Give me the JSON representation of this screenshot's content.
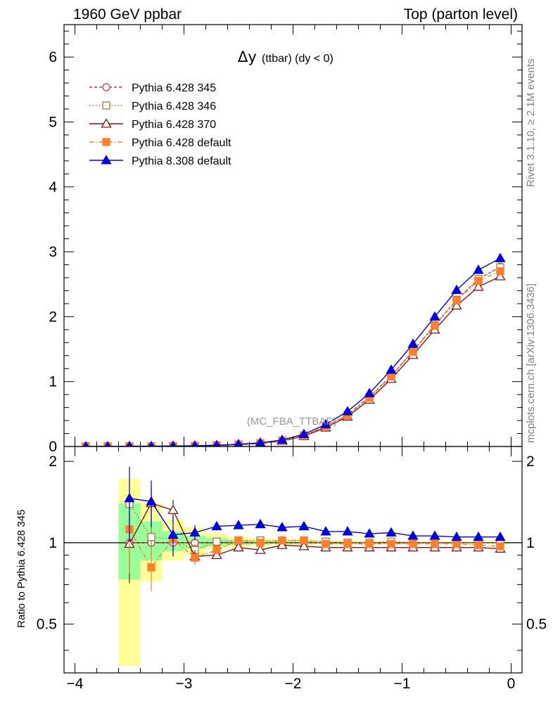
{
  "header": {
    "left": "1960 GeV ppbar",
    "right": "Top (parton level)"
  },
  "side_labels": {
    "rivet": "Rivet 3.1.10, ≥ 2.1M events",
    "mcplots": "mcplots.cern.ch [arXiv:1306.3436]"
  },
  "chart_data": [
    {
      "type": "line",
      "title": "Δy (ttbar) (dy < 0)",
      "title_main": "Δy",
      "title_sub": "(ttbar) (dy < 0)",
      "watermark": "(MC_FBA_TTBAR)",
      "xlim": [
        -4.1,
        0.1
      ],
      "ylim": [
        0,
        6.5
      ],
      "x_ticks": [
        -4,
        -3,
        -2,
        -1,
        0
      ],
      "x_tick_labels": [
        "−4",
        "−3",
        "−2",
        "−1",
        "0"
      ],
      "y_ticks": [
        0,
        1,
        2,
        3,
        4,
        5,
        6
      ],
      "y_tick_labels": [
        "0",
        "1",
        "2",
        "3",
        "4",
        "5",
        "6"
      ],
      "legend_position": "top-left",
      "x": [
        -3.9,
        -3.7,
        -3.5,
        -3.3,
        -3.1,
        -2.9,
        -2.7,
        -2.5,
        -2.3,
        -2.1,
        -1.9,
        -1.7,
        -1.5,
        -1.3,
        -1.1,
        -0.9,
        -0.7,
        -0.5,
        -0.3,
        -0.1
      ],
      "series": [
        {
          "name": "Pythia 6.428 345",
          "color": "#cc3355",
          "marker": "circle-open",
          "dash": "4,3",
          "values": [
            0.001,
            0.002,
            0.003,
            0.004,
            0.006,
            0.01,
            0.018,
            0.03,
            0.05,
            0.09,
            0.17,
            0.31,
            0.49,
            0.76,
            1.09,
            1.47,
            1.87,
            2.26,
            2.58,
            2.77
          ]
        },
        {
          "name": "Pythia 6.428 346",
          "color": "#a07840",
          "marker": "square-open",
          "dash": "1.5,3",
          "values": [
            0.001,
            0.002,
            0.003,
            0.004,
            0.006,
            0.01,
            0.018,
            0.03,
            0.05,
            0.09,
            0.17,
            0.31,
            0.49,
            0.76,
            1.09,
            1.47,
            1.87,
            2.26,
            2.58,
            2.76
          ]
        },
        {
          "name": "Pythia 6.428 370",
          "color": "#8b1010",
          "marker": "triangle-open",
          "dash": "",
          "values": [
            0.001,
            0.002,
            0.003,
            0.004,
            0.006,
            0.009,
            0.016,
            0.028,
            0.047,
            0.085,
            0.16,
            0.29,
            0.46,
            0.72,
            1.04,
            1.41,
            1.8,
            2.17,
            2.46,
            2.62
          ]
        },
        {
          "name": "Pythia 6.428 default",
          "color": "#ff7f2a",
          "marker": "square-filled",
          "dash": "6,3,1.5,3",
          "values": [
            0.001,
            0.002,
            0.003,
            0.004,
            0.006,
            0.01,
            0.018,
            0.03,
            0.05,
            0.09,
            0.17,
            0.31,
            0.48,
            0.75,
            1.08,
            1.46,
            1.86,
            2.25,
            2.55,
            2.7
          ]
        },
        {
          "name": "Pythia 8.308 default",
          "color": "#0000dd",
          "marker": "triangle-filled",
          "dash": "",
          "values": [
            0.001,
            0.002,
            0.004,
            0.005,
            0.007,
            0.011,
            0.02,
            0.034,
            0.058,
            0.1,
            0.19,
            0.34,
            0.54,
            0.82,
            1.18,
            1.58,
            2.0,
            2.41,
            2.72,
            2.9
          ]
        }
      ]
    },
    {
      "type": "line",
      "ylabel": "Ratio to Pythia 6.428 345",
      "xlim": [
        -4.1,
        0.1
      ],
      "ylim": [
        0.33,
        2.27
      ],
      "log_y": true,
      "y_ticks": [
        0.5,
        1,
        2
      ],
      "y_tick_labels": [
        "0.5",
        "1",
        "2"
      ],
      "reference_line": 1,
      "x": [
        -3.5,
        -3.3,
        -3.1,
        -2.9,
        -2.7,
        -2.5,
        -2.3,
        -2.1,
        -1.9,
        -1.7,
        -1.5,
        -1.3,
        -1.1,
        -0.9,
        -0.7,
        -0.5,
        -0.3,
        -0.1
      ],
      "bands": {
        "x_edges": [
          -3.6,
          -3.4,
          -3.2,
          -3.0,
          -2.8,
          -2.6,
          -2.4,
          -2.2,
          -2.0,
          -1.8,
          -1.6,
          -1.4,
          -1.2,
          -1.0,
          -0.8,
          -0.6,
          -0.4,
          -0.2,
          0.0
        ],
        "yellow": [
          [
            0.35,
            1.72
          ],
          [
            0.72,
            1.4
          ],
          [
            0.86,
            1.22
          ],
          [
            0.9,
            1.14
          ],
          [
            0.94,
            1.08
          ],
          [
            0.96,
            1.05
          ],
          [
            0.97,
            1.04
          ],
          [
            0.98,
            1.03
          ],
          [
            0.98,
            1.03
          ],
          [
            0.985,
            1.02
          ],
          [
            0.985,
            1.02
          ],
          [
            0.99,
            1.015
          ],
          [
            0.99,
            1.015
          ],
          [
            0.99,
            1.01
          ],
          [
            0.99,
            1.01
          ],
          [
            0.99,
            1.01
          ],
          [
            0.99,
            1.01
          ],
          [
            0.99,
            1.01
          ]
        ],
        "green": [
          [
            0.73,
            1.4
          ],
          [
            0.86,
            1.2
          ],
          [
            0.93,
            1.1
          ],
          [
            0.95,
            1.06
          ],
          [
            0.97,
            1.04
          ],
          [
            0.98,
            1.025
          ],
          [
            0.985,
            1.02
          ],
          [
            0.99,
            1.015
          ],
          [
            0.99,
            1.015
          ],
          [
            0.992,
            1.01
          ],
          [
            0.992,
            1.01
          ],
          [
            0.995,
            1.008
          ],
          [
            0.995,
            1.008
          ],
          [
            0.995,
            1.006
          ],
          [
            0.995,
            1.006
          ],
          [
            0.995,
            1.006
          ],
          [
            0.995,
            1.006
          ],
          [
            0.995,
            1.006
          ]
        ]
      },
      "series": [
        {
          "name": "Pythia 6.428 345",
          "color": "#cc3355",
          "values": [
            1,
            1,
            1,
            1,
            1,
            1,
            1,
            1,
            1,
            1,
            1,
            1,
            1,
            1,
            1,
            1,
            1,
            1
          ]
        },
        {
          "name": "Pythia 6.428 346",
          "color": "#a07840",
          "values": [
            1.39,
            1.05,
            1.03,
            0.94,
            1.01,
            1.02,
            1.02,
            1.02,
            1.02,
            1.01,
            1.0,
            1.0,
            1.01,
            1.0,
            1.0,
            1.0,
            1.0,
            1.0
          ]
        },
        {
          "name": "Pythia 6.428 370",
          "color": "#8b1010",
          "values": [
            0.99,
            1.4,
            1.32,
            0.89,
            0.9,
            0.96,
            0.94,
            0.98,
            0.97,
            0.96,
            0.96,
            0.96,
            0.96,
            0.96,
            0.96,
            0.96,
            0.96,
            0.95
          ]
        },
        {
          "name": "Pythia 6.428 default",
          "color": "#ff7f2a",
          "values": [
            1.12,
            0.81,
            1.03,
            0.88,
            0.94,
            1.02,
            1.0,
            1.02,
            1.02,
            0.99,
            0.99,
            0.99,
            0.99,
            0.99,
            0.99,
            0.99,
            0.98,
            0.97
          ]
        },
        {
          "name": "Pythia 8.308 default",
          "color": "#0000dd",
          "values": [
            1.46,
            1.42,
            1.07,
            1.09,
            1.15,
            1.16,
            1.17,
            1.14,
            1.15,
            1.1,
            1.1,
            1.08,
            1.09,
            1.06,
            1.06,
            1.05,
            1.05,
            1.05
          ]
        }
      ],
      "errors": {
        "Pythia 8.308 default": [
          0.45,
          0.28,
          0.18,
          0.07,
          0.04,
          0.03,
          0.02,
          0.02,
          0.015,
          0.01,
          0.01,
          0.01,
          0.01,
          0.01,
          0.01,
          0.01,
          0.01,
          0.01
        ],
        "Pythia 6.428 default": [
          0.35,
          0.15,
          0.1,
          0.05,
          0.03,
          0.02,
          0.015,
          0.01,
          0.01,
          0.01,
          0.01,
          0.01,
          0.01,
          0.01,
          0.01,
          0.01,
          0.01,
          0.01
        ],
        "Pythia 6.428 370": [
          0.28,
          0.2,
          0.12,
          0.05,
          0.03,
          0.02,
          0.015,
          0.01,
          0.01,
          0.01,
          0.01,
          0.01,
          0.01,
          0.01,
          0.01,
          0.01,
          0.01,
          0.01
        ],
        "Pythia 6.428 346": [
          0.3,
          0.15,
          0.1,
          0.05,
          0.03,
          0.02,
          0.015,
          0.01,
          0.01,
          0.01,
          0.01,
          0.01,
          0.01,
          0.01,
          0.01,
          0.01,
          0.01,
          0.01
        ]
      }
    }
  ]
}
